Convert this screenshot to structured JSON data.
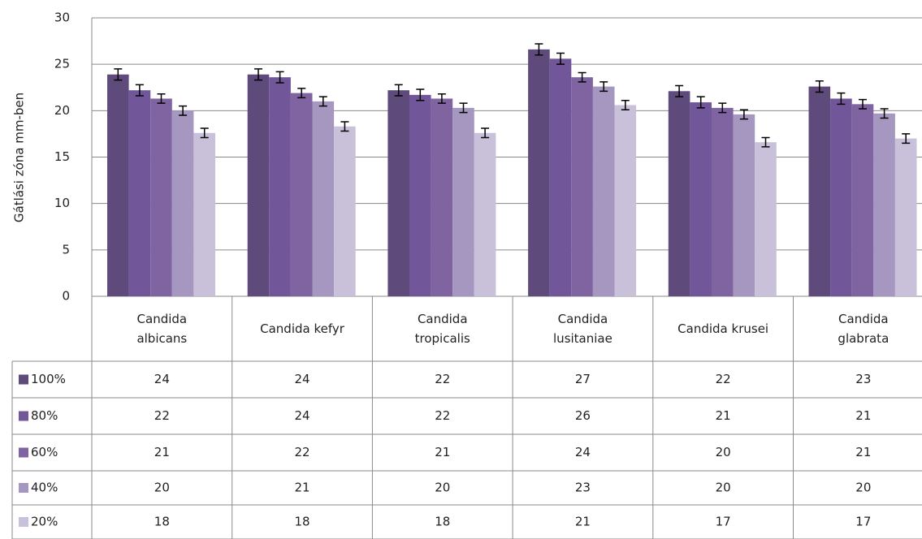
{
  "chart_data": {
    "type": "bar",
    "ylabel": "Gátlási zóna mm-ben",
    "categories": [
      "Candida albicans",
      "Candida kefyr",
      "Candida tropicalis",
      "Candida lusitaniae",
      "Candida krusei",
      "Candida glabrata"
    ],
    "series": [
      {
        "name": "100%",
        "color": "#5e4a7b",
        "values": [
          23.9,
          23.9,
          22.2,
          26.6,
          22.1,
          22.6
        ],
        "value_labels": [
          "24",
          "24",
          "22",
          "27",
          "22",
          "23"
        ],
        "errors": [
          0.6,
          0.6,
          0.6,
          0.6,
          0.6,
          0.6
        ]
      },
      {
        "name": "80%",
        "color": "#72569a",
        "values": [
          22.2,
          23.6,
          21.7,
          25.6,
          20.9,
          21.3
        ],
        "value_labels": [
          "22",
          "24",
          "22",
          "26",
          "21",
          "21"
        ],
        "errors": [
          0.6,
          0.6,
          0.6,
          0.6,
          0.6,
          0.6
        ]
      },
      {
        "name": "60%",
        "color": "#8064a2",
        "values": [
          21.3,
          21.9,
          21.3,
          23.6,
          20.3,
          20.7
        ],
        "value_labels": [
          "21",
          "22",
          "21",
          "24",
          "20",
          "21"
        ],
        "errors": [
          0.5,
          0.5,
          0.5,
          0.5,
          0.5,
          0.5
        ]
      },
      {
        "name": "40%",
        "color": "#a597c0",
        "values": [
          20.0,
          21.0,
          20.3,
          22.6,
          19.6,
          19.7
        ],
        "value_labels": [
          "20",
          "21",
          "20",
          "23",
          "20",
          "20"
        ],
        "errors": [
          0.5,
          0.5,
          0.5,
          0.5,
          0.5,
          0.5
        ]
      },
      {
        "name": "20%",
        "color": "#c9c0da",
        "values": [
          17.6,
          18.3,
          17.6,
          20.6,
          16.6,
          17.0
        ],
        "value_labels": [
          "18",
          "18",
          "18",
          "21",
          "17",
          "17"
        ],
        "errors": [
          0.5,
          0.5,
          0.5,
          0.5,
          0.5,
          0.5
        ]
      }
    ],
    "ylim": [
      0,
      30
    ],
    "yticks": [
      0,
      5,
      10,
      15,
      20,
      25,
      30
    ],
    "grid": true
  }
}
